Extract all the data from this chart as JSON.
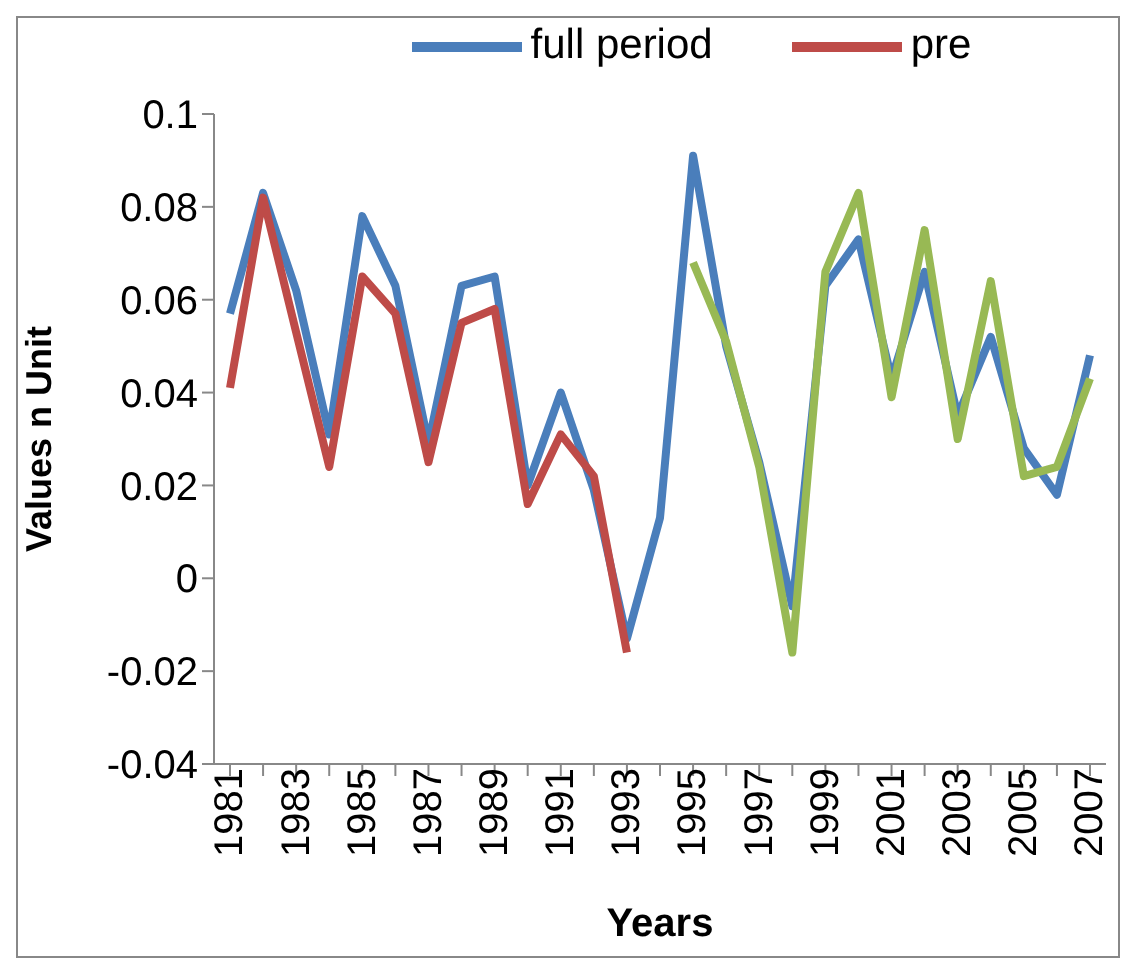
{
  "chart_data": {
    "type": "line",
    "xlabel": "Years",
    "ylabel": "Values n Unit",
    "categories": [
      "1981",
      null,
      "1983",
      null,
      "1985",
      null,
      "1987",
      null,
      "1989",
      null,
      "1991",
      null,
      "1993",
      null,
      "1995",
      null,
      "1997",
      null,
      "1999",
      null,
      "2001",
      null,
      "2003",
      null,
      "2005",
      null,
      "2007"
    ],
    "series": [
      {
        "name": "full period",
        "color": "#4a7ebb",
        "values": [
          0.057,
          0.083,
          0.062,
          0.031,
          0.078,
          0.063,
          0.029,
          0.063,
          0.065,
          0.02,
          0.04,
          0.019,
          -0.013,
          0.013,
          0.091,
          0.05,
          0.025,
          -0.006,
          0.063,
          0.073,
          0.043,
          0.066,
          0.035,
          0.052,
          0.028,
          0.018,
          0.048
        ]
      },
      {
        "name": "pre",
        "color": "#be4b48",
        "values": [
          0.041,
          0.082,
          0.053,
          0.024,
          0.065,
          0.057,
          0.025,
          0.055,
          0.058,
          0.016,
          0.031,
          0.022,
          -0.016,
          null,
          null,
          null,
          null,
          null,
          null,
          null,
          null,
          null,
          null,
          null,
          null,
          null,
          null
        ]
      },
      {
        "color": "#98b954",
        "values": [
          null,
          null,
          null,
          null,
          null,
          null,
          null,
          null,
          null,
          null,
          null,
          null,
          null,
          null,
          0.068,
          0.051,
          0.024,
          -0.016,
          0.066,
          0.083,
          0.039,
          0.075,
          0.03,
          0.064,
          0.022,
          0.024,
          0.043
        ]
      }
    ],
    "ylim": [
      -0.04,
      0.1
    ],
    "yticks": [
      -0.04,
      -0.02,
      0,
      0.02,
      0.04,
      0.06,
      0.08,
      0.1
    ],
    "grid": false,
    "legend": "top",
    "marker": "none",
    "line_style": "solid"
  }
}
